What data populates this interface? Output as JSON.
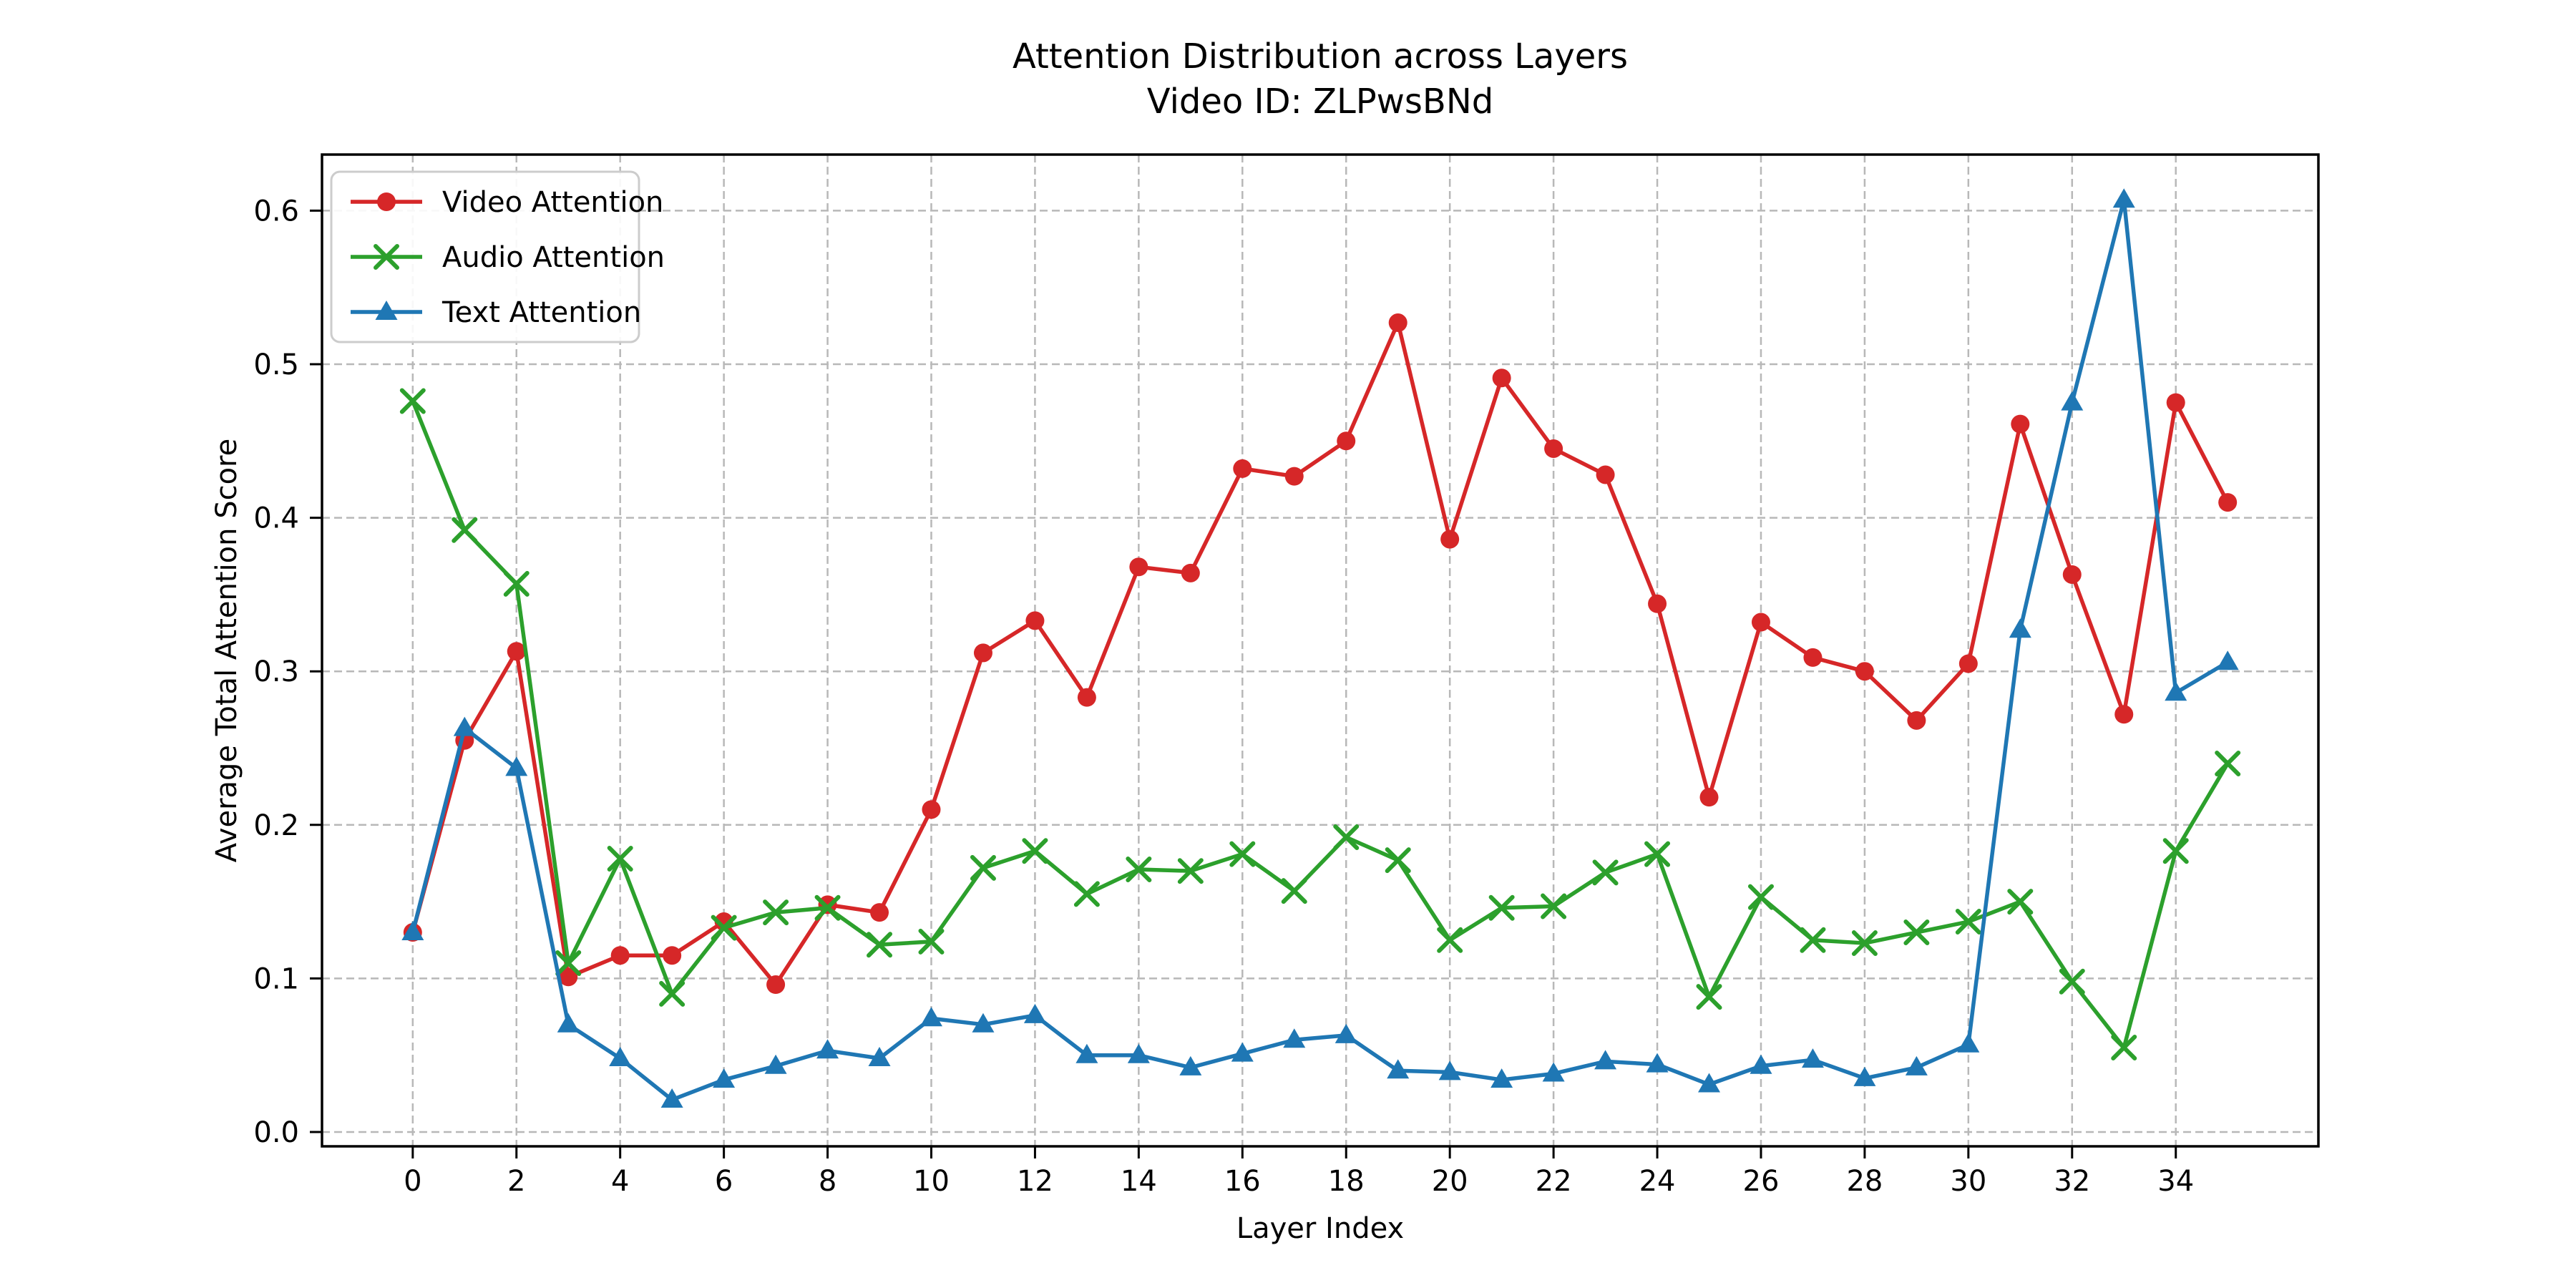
{
  "figure": {
    "title_line1": "Attention Distribution across Layers",
    "title_line2": "Video ID: ZLPwsBNd"
  },
  "chart_data": {
    "type": "line",
    "title": "Attention Distribution across Layers",
    "subtitle": "Video ID: ZLPwsBNd",
    "xlabel": "Layer Index",
    "ylabel": "Average Total Attention Score",
    "xlim": [
      -1.75,
      36.75
    ],
    "ylim": [
      -0.0093,
      0.6365
    ],
    "xticks": [
      0,
      2,
      4,
      6,
      8,
      10,
      12,
      14,
      16,
      18,
      20,
      22,
      24,
      26,
      28,
      30,
      32,
      34
    ],
    "yticks": [
      0.0,
      0.1,
      0.2,
      0.3,
      0.4,
      0.5,
      0.6
    ],
    "ytick_labels": [
      "0.0",
      "0.1",
      "0.2",
      "0.3",
      "0.4",
      "0.5",
      "0.6"
    ],
    "grid": true,
    "grid_style": "dashed",
    "grid_color": "#b8b8b8",
    "legend_position": "upper left",
    "x": [
      0,
      1,
      2,
      3,
      4,
      5,
      6,
      7,
      8,
      9,
      10,
      11,
      12,
      13,
      14,
      15,
      16,
      17,
      18,
      19,
      20,
      21,
      22,
      23,
      24,
      25,
      26,
      27,
      28,
      29,
      30,
      31,
      32,
      33,
      34,
      35
    ],
    "series": [
      {
        "name": "Video Attention",
        "color": "#d62728",
        "marker": "circle",
        "values": [
          0.13,
          0.255,
          0.313,
          0.101,
          0.115,
          0.115,
          0.137,
          0.096,
          0.148,
          0.143,
          0.21,
          0.312,
          0.333,
          0.283,
          0.368,
          0.364,
          0.432,
          0.427,
          0.45,
          0.527,
          0.386,
          0.491,
          0.445,
          0.428,
          0.344,
          0.218,
          0.332,
          0.309,
          0.3,
          0.268,
          0.305,
          0.461,
          0.363,
          0.272,
          0.475,
          0.41
        ]
      },
      {
        "name": "Audio Attention",
        "color": "#2ca02c",
        "marker": "x",
        "values": [
          0.476,
          0.392,
          0.357,
          0.11,
          0.178,
          0.09,
          0.133,
          0.143,
          0.146,
          0.122,
          0.124,
          0.172,
          0.183,
          0.155,
          0.171,
          0.17,
          0.181,
          0.157,
          0.192,
          0.177,
          0.125,
          0.146,
          0.147,
          0.169,
          0.181,
          0.088,
          0.153,
          0.125,
          0.123,
          0.13,
          0.137,
          0.15,
          0.098,
          0.055,
          0.183,
          0.24
        ]
      },
      {
        "name": "Text Attention",
        "color": "#1f77b4",
        "marker": "triangle",
        "values": [
          0.13,
          0.263,
          0.237,
          0.07,
          0.048,
          0.021,
          0.034,
          0.043,
          0.053,
          0.048,
          0.074,
          0.07,
          0.076,
          0.05,
          0.05,
          0.042,
          0.051,
          0.06,
          0.063,
          0.04,
          0.039,
          0.034,
          0.038,
          0.046,
          0.044,
          0.031,
          0.043,
          0.047,
          0.035,
          0.042,
          0.057,
          0.327,
          0.475,
          0.607,
          0.286,
          0.306
        ]
      }
    ]
  }
}
